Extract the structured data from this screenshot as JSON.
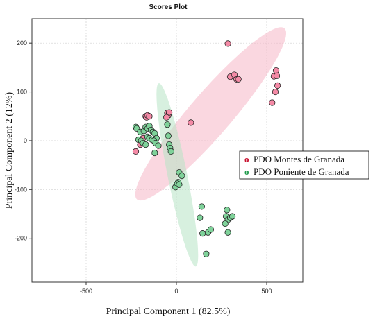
{
  "chart_data": {
    "type": "scatter",
    "title": "Scores Plot",
    "xlabel": "Principal Component 1 (82.5%)",
    "ylabel": "Principal Component  2 (12%)",
    "xlim": [
      -800,
      700
    ],
    "ylim": [
      -290,
      250
    ],
    "xticks": [
      -500,
      0,
      500
    ],
    "yticks": [
      -200,
      -100,
      0,
      100,
      200
    ],
    "grid": true,
    "legend_position": "right",
    "legend_marker": "o",
    "series": [
      {
        "name": "PDO Montes de Granada",
        "color": "#f48aa6",
        "ellipse_color": "#f6b6c6",
        "ellipse": {
          "center": [
            190,
            55
          ],
          "semi_major": 450,
          "semi_minor": 60,
          "angle_deg": 22
        },
        "points": [
          [
            285,
            199
          ],
          [
            298,
            131
          ],
          [
            321,
            135
          ],
          [
            333,
            126
          ],
          [
            343,
            126
          ],
          [
            552,
            144
          ],
          [
            540,
            132
          ],
          [
            556,
            133
          ],
          [
            560,
            113
          ],
          [
            548,
            100
          ],
          [
            530,
            78
          ],
          [
            80,
            37
          ],
          [
            -170,
            50
          ],
          [
            -165,
            48
          ],
          [
            -160,
            52
          ],
          [
            -150,
            50
          ],
          [
            -50,
            57
          ],
          [
            -45,
            52
          ],
          [
            -40,
            58
          ],
          [
            -55,
            48
          ],
          [
            -225,
            -22
          ],
          [
            -200,
            -8
          ],
          [
            -185,
            5
          ]
        ]
      },
      {
        "name": "PDO Poniente de Granada",
        "color": "#7fd29a",
        "ellipse_color": "#b7e4c4",
        "ellipse": {
          "center": [
            5,
            -70
          ],
          "semi_major": 215,
          "semi_minor": 48,
          "angle_deg": -60
        },
        "points": [
          [
            -225,
            28
          ],
          [
            -220,
            25
          ],
          [
            -200,
            18
          ],
          [
            -180,
            20
          ],
          [
            -170,
            28
          ],
          [
            -160,
            25
          ],
          [
            -150,
            30
          ],
          [
            -140,
            22
          ],
          [
            -130,
            18
          ],
          [
            -120,
            15
          ],
          [
            -110,
            5
          ],
          [
            -210,
            2
          ],
          [
            -195,
            0
          ],
          [
            -185,
            -5
          ],
          [
            -170,
            -8
          ],
          [
            -160,
            8
          ],
          [
            -150,
            5
          ],
          [
            -135,
            2
          ],
          [
            -125,
            0
          ],
          [
            -115,
            -5
          ],
          [
            -120,
            -25
          ],
          [
            -100,
            -10
          ],
          [
            -50,
            33
          ],
          [
            -45,
            10
          ],
          [
            -40,
            -8
          ],
          [
            -35,
            -15
          ],
          [
            -30,
            -22
          ],
          [
            15,
            -65
          ],
          [
            30,
            -72
          ],
          [
            10,
            -85
          ],
          [
            -5,
            -95
          ],
          [
            5,
            -88
          ],
          [
            15,
            -90
          ],
          [
            140,
            -135
          ],
          [
            130,
            -158
          ],
          [
            145,
            -190
          ],
          [
            175,
            -188
          ],
          [
            190,
            -182
          ],
          [
            280,
            -142
          ],
          [
            275,
            -155
          ],
          [
            285,
            -162
          ],
          [
            298,
            -158
          ],
          [
            310,
            -155
          ],
          [
            270,
            -170
          ],
          [
            285,
            -188
          ],
          [
            165,
            -232
          ]
        ]
      }
    ]
  }
}
